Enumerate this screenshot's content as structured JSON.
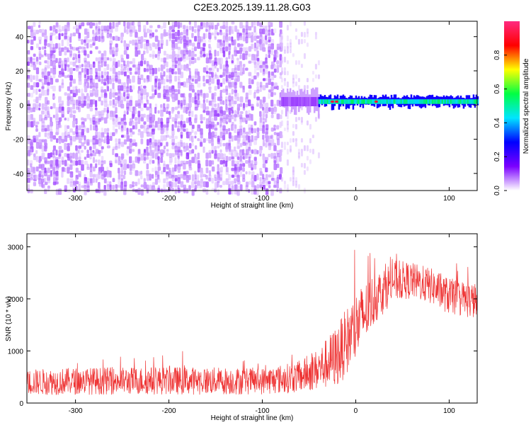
{
  "figure_title": "C2E3.2025.139.11.28.G03",
  "chart_data": [
    {
      "type": "heatmap",
      "xlabel": "Height of straight line (km)",
      "ylabel": "Frequency (Hz)",
      "xlim": [
        -352,
        130
      ],
      "ylim": [
        -50,
        49
      ],
      "xticks": [
        -300,
        -200,
        -100,
        0,
        100
      ],
      "xtick_labels": [
        "-300",
        "-200",
        "-100",
        "0",
        "100"
      ],
      "yticks": [
        -40,
        -20,
        0,
        20,
        40
      ],
      "ytick_labels": [
        "-40",
        "-20",
        "0",
        "20",
        "40"
      ],
      "colorbar": {
        "label": "Normalized spectral amplitude",
        "range": [
          0,
          1
        ],
        "ticks": [
          0.0,
          0.2,
          0.4,
          0.6,
          0.8
        ],
        "tick_labels": [
          "0.0",
          "0.2",
          "0.4",
          "0.6",
          "0.8"
        ],
        "colors": [
          "#ffffff",
          "#7b00ff",
          "#0000ff",
          "#00e5ff",
          "#00ff44",
          "#ffff00",
          "#ff0000",
          "#ff2a80"
        ]
      },
      "noise_region_x": [
        -352,
        -80
      ],
      "noise_amplitude": 0.08,
      "fade_region_x": [
        -80,
        -35
      ],
      "signal_segments": [
        {
          "x0": -80,
          "x1": -40,
          "freq": 2,
          "width": 6,
          "amplitude": 0.15
        },
        {
          "x0": -40,
          "x1": 130,
          "freq": 2,
          "width": 3,
          "amplitude": 0.75
        }
      ],
      "grid": false
    },
    {
      "type": "line",
      "xlabel": "Height of straight line (km)",
      "ylabel": "SNR (10 * v/v)",
      "xlim": [
        -352,
        130
      ],
      "ylim": [
        0,
        3250
      ],
      "xticks": [
        -300,
        -200,
        -100,
        0,
        100
      ],
      "xtick_labels": [
        "-300",
        "-200",
        "-100",
        "0",
        "100"
      ],
      "yticks": [
        0,
        1000,
        2000,
        3000
      ],
      "ytick_labels": [
        "0",
        "1000",
        "2000",
        "3000"
      ],
      "series": [
        {
          "color": "#ee3333",
          "envelope_x": [
            -352,
            -300,
            -200,
            -100,
            -60,
            -40,
            -20,
            0,
            20,
            40,
            60,
            80,
            100,
            130
          ],
          "envelope_mean": [
            400,
            420,
            430,
            420,
            500,
            650,
            900,
            1450,
            2000,
            2350,
            2350,
            2250,
            2050,
            1950
          ],
          "envelope_spread": [
            250,
            260,
            270,
            260,
            300,
            400,
            600,
            700,
            500,
            400,
            350,
            350,
            350,
            350
          ]
        }
      ],
      "grid": false
    }
  ]
}
